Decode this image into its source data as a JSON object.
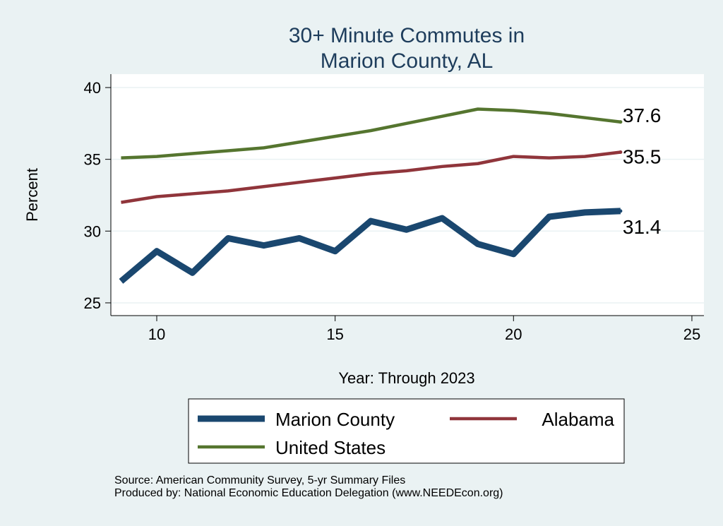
{
  "chart_data": {
    "type": "line",
    "title": "30+ Minute Commutes in",
    "subtitle": "Marion County, AL",
    "xlabel": "Year: Through 2023",
    "ylabel": "Percent",
    "xlim": [
      8.3,
      25.3
    ],
    "ylim": [
      24.1,
      40.9
    ],
    "xticks": [
      10,
      15,
      20,
      25
    ],
    "yticks": [
      25,
      30,
      35,
      40
    ],
    "grid": true,
    "legend_placement": "bottom",
    "x": [
      9,
      10,
      11,
      12,
      13,
      14,
      15,
      16,
      17,
      18,
      19,
      20,
      21,
      22,
      23
    ],
    "series": [
      {
        "name": "Marion County",
        "color": "#1a476f",
        "width": 9,
        "end_label": "31.4",
        "values": [
          26.5,
          28.6,
          27.1,
          29.5,
          29.0,
          29.5,
          28.6,
          30.7,
          30.1,
          30.9,
          29.1,
          28.4,
          31.0,
          31.3,
          31.4
        ]
      },
      {
        "name": "Alabama",
        "color": "#90353b",
        "width": 4.5,
        "end_label": "35.5",
        "values": [
          32.0,
          32.4,
          32.6,
          32.8,
          33.1,
          33.4,
          33.7,
          34.0,
          34.2,
          34.5,
          34.7,
          35.2,
          35.1,
          35.2,
          35.5
        ]
      },
      {
        "name": "United States",
        "color": "#55752f",
        "width": 4.5,
        "end_label": "37.6",
        "values": [
          35.1,
          35.2,
          35.4,
          35.6,
          35.8,
          36.2,
          36.6,
          37.0,
          37.5,
          38.0,
          38.5,
          38.4,
          38.2,
          37.9,
          37.6
        ]
      }
    ]
  },
  "notes": {
    "source": "Source: American Community Survey, 5-yr Summary Files",
    "produced": "Produced by: National Economic Education Delegation (www.NEEDEcon.org)"
  }
}
